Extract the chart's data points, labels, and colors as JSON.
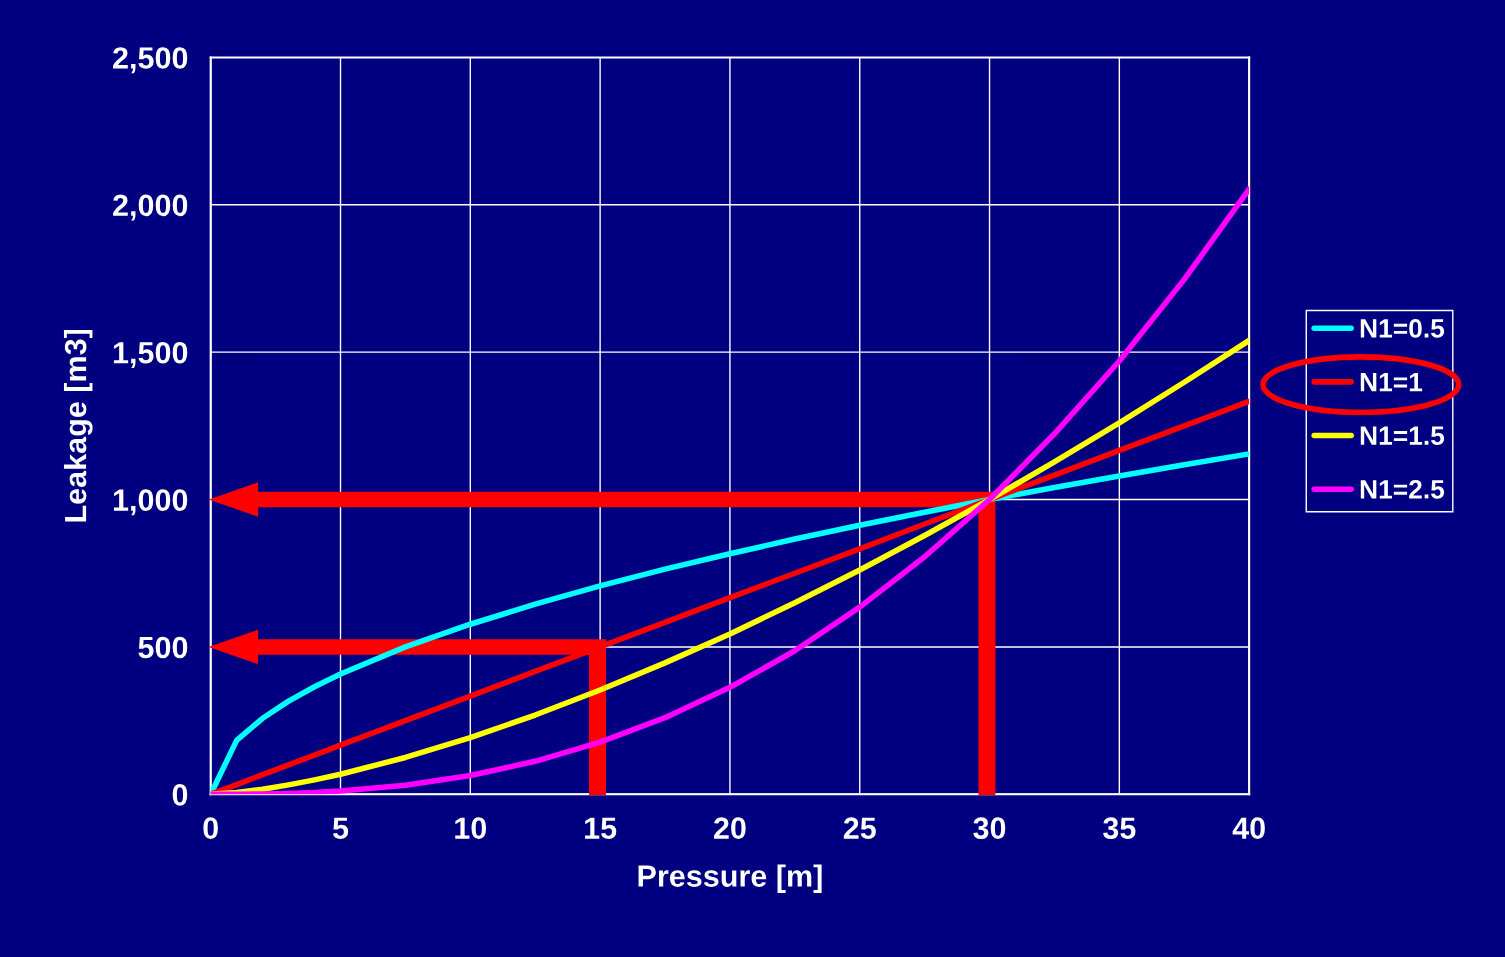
{
  "chart_data": {
    "type": "line",
    "xlabel": "Pressure [m]",
    "ylabel": "Leakage [m3]",
    "x": [
      0,
      1,
      2,
      3,
      4,
      5,
      7.5,
      10,
      12.5,
      15,
      17.5,
      20,
      22.5,
      25,
      27.5,
      30,
      32.5,
      35,
      37.5,
      40
    ],
    "series": [
      {
        "name": "N1=0.5",
        "color": "#00ffff",
        "values": [
          0,
          183,
          258,
          316,
          365,
          408,
          500,
          577,
          645,
          707,
          764,
          816,
          866,
          913,
          957,
          1000,
          1041,
          1080,
          1118,
          1155
        ]
      },
      {
        "name": "N1=1",
        "color": "#ff0000",
        "values": [
          0,
          33,
          67,
          100,
          133,
          167,
          250,
          333,
          417,
          500,
          583,
          667,
          750,
          833,
          917,
          1000,
          1083,
          1167,
          1250,
          1333
        ]
      },
      {
        "name": "N1=1.5",
        "color": "#ffff00",
        "values": [
          0,
          6,
          17,
          32,
          49,
          68,
          125,
          192,
          269,
          354,
          446,
          544,
          650,
          761,
          878,
          1000,
          1128,
          1260,
          1398,
          1540
        ]
      },
      {
        "name": "N1=2.5",
        "color": "#ff00ff",
        "values": [
          0,
          0,
          1,
          3,
          6,
          11,
          31,
          64,
          112,
          177,
          260,
          363,
          487,
          635,
          806,
          1000,
          1223,
          1470,
          1747,
          2053
        ]
      }
    ],
    "xlim": [
      0,
      40
    ],
    "xticks": [
      0,
      5,
      10,
      15,
      20,
      25,
      30,
      35,
      40
    ],
    "ylim": [
      0,
      2500
    ],
    "yticks": [
      0,
      {
        "value": 500,
        "label": "500"
      },
      {
        "value": 1000,
        "label": "1,000"
      },
      {
        "value": 1500,
        "label": "1,500"
      },
      {
        "value": 2000,
        "label": "2,000"
      },
      {
        "value": 2500,
        "label": "2,500"
      }
    ],
    "grid": true,
    "legend": "right",
    "marker": "none",
    "line_style": "solid"
  }
}
